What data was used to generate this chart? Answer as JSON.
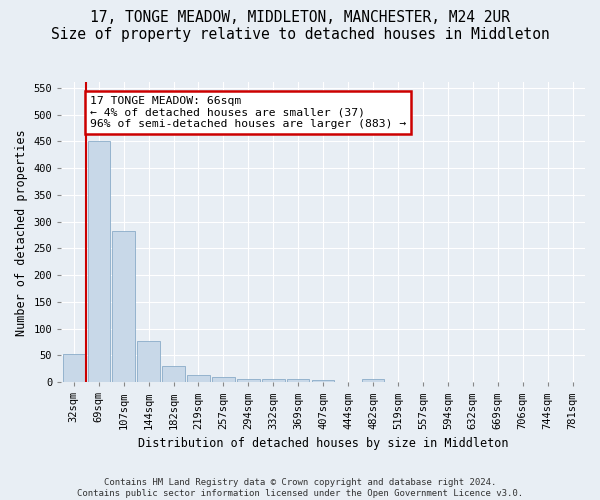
{
  "title": "17, TONGE MEADOW, MIDDLETON, MANCHESTER, M24 2UR",
  "subtitle": "Size of property relative to detached houses in Middleton",
  "xlabel": "Distribution of detached houses by size in Middleton",
  "ylabel": "Number of detached properties",
  "categories": [
    "32sqm",
    "69sqm",
    "107sqm",
    "144sqm",
    "182sqm",
    "219sqm",
    "257sqm",
    "294sqm",
    "332sqm",
    "369sqm",
    "407sqm",
    "444sqm",
    "482sqm",
    "519sqm",
    "557sqm",
    "594sqm",
    "632sqm",
    "669sqm",
    "706sqm",
    "744sqm",
    "781sqm"
  ],
  "values": [
    52,
    450,
    283,
    77,
    30,
    14,
    10,
    5,
    6,
    5,
    4,
    0,
    5,
    0,
    0,
    0,
    0,
    0,
    0,
    0,
    0
  ],
  "bar_color": "#c8d8e8",
  "bar_edge_color": "#8aacc8",
  "property_line_color": "#cc0000",
  "annotation_text": "17 TONGE MEADOW: 66sqm\n← 4% of detached houses are smaller (37)\n96% of semi-detached houses are larger (883) →",
  "annotation_box_color": "#cc0000",
  "annotation_bg": "#ffffff",
  "ylim": [
    0,
    560
  ],
  "yticks": [
    0,
    50,
    100,
    150,
    200,
    250,
    300,
    350,
    400,
    450,
    500,
    550
  ],
  "footer": "Contains HM Land Registry data © Crown copyright and database right 2024.\nContains public sector information licensed under the Open Government Licence v3.0.",
  "bg_color": "#e8eef4",
  "plot_bg_color": "#e8eef4",
  "grid_color": "#ffffff",
  "title_fontsize": 10.5,
  "subtitle_fontsize": 9.5,
  "axis_label_fontsize": 8.5,
  "tick_fontsize": 7.5,
  "footer_fontsize": 6.5
}
